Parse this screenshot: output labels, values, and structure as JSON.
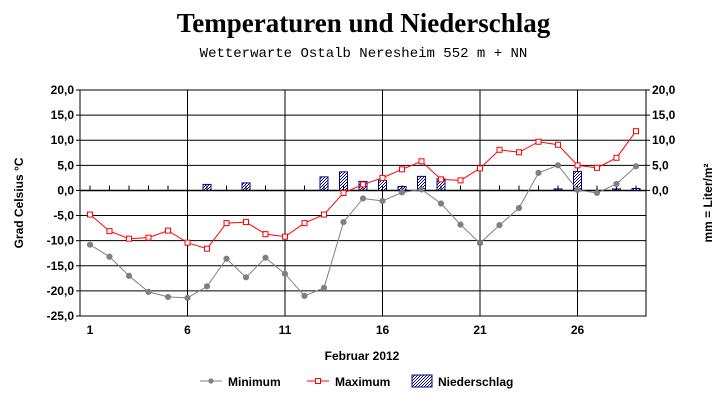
{
  "title": "Temperaturen und Niederschlag",
  "subtitle": "Wetterwarte Ostalb Neresheim 552 m + NN",
  "chart_data": {
    "type": "line",
    "xlabel": "Februar 2012",
    "ylabel_left": "Grad Celsius °C",
    "ylabel_right": "mm = Liter/m²",
    "ylim": [
      -25,
      20
    ],
    "yticks_left": [
      "20,0",
      "15,0",
      "10,0",
      "5,0",
      "0,0",
      "-5,0",
      "-10,0",
      "-15,0",
      "-20,0",
      "-25,0"
    ],
    "yticks_right": [
      "20,0",
      "15,0",
      "10,0",
      "5,0",
      "0,0"
    ],
    "x": [
      1,
      2,
      3,
      4,
      5,
      6,
      7,
      8,
      9,
      10,
      11,
      12,
      13,
      14,
      15,
      16,
      17,
      18,
      19,
      20,
      21,
      22,
      23,
      24,
      25,
      26,
      27,
      28,
      29
    ],
    "xtick_labels": [
      "1",
      "6",
      "11",
      "16",
      "21",
      "26"
    ],
    "grid": true,
    "legend_position": "bottom",
    "series": [
      {
        "name": "Minimum",
        "type": "line",
        "color": "#808080",
        "marker": "circle",
        "values": [
          -10.8,
          -13.2,
          -17.0,
          -20.2,
          -21.2,
          -21.4,
          -19.1,
          -13.6,
          -17.3,
          -13.4,
          -16.6,
          -21.0,
          -19.4,
          -6.3,
          -1.6,
          -2.1,
          -0.4,
          0.2,
          -2.6,
          -6.8,
          -10.5,
          -6.9,
          -3.5,
          3.5,
          5.0,
          0.1,
          -0.5,
          1.3,
          4.8
        ]
      },
      {
        "name": "Maximum",
        "type": "line",
        "color": "#ff0000",
        "marker": "square",
        "values": [
          -4.8,
          -8.1,
          -9.6,
          -9.4,
          -8.0,
          -10.4,
          -11.6,
          -6.5,
          -6.3,
          -8.7,
          -9.2,
          -6.5,
          -4.8,
          -0.5,
          1.2,
          2.5,
          4.2,
          5.8,
          2.2,
          2.0,
          4.4,
          8.1,
          7.6,
          9.7,
          9.1,
          5.0,
          4.5,
          6.5,
          11.8
        ]
      },
      {
        "name": "Niederschlag",
        "type": "bar",
        "color": "#00008b",
        "axis": "right",
        "values": [
          0,
          0,
          0,
          0,
          0,
          0,
          1.2,
          0,
          1.5,
          0,
          0,
          0,
          2.7,
          3.7,
          1.8,
          2.0,
          0.8,
          2.8,
          2.3,
          0,
          0,
          0,
          0,
          0,
          0.3,
          3.8,
          0,
          0.3,
          0.4
        ]
      }
    ]
  }
}
